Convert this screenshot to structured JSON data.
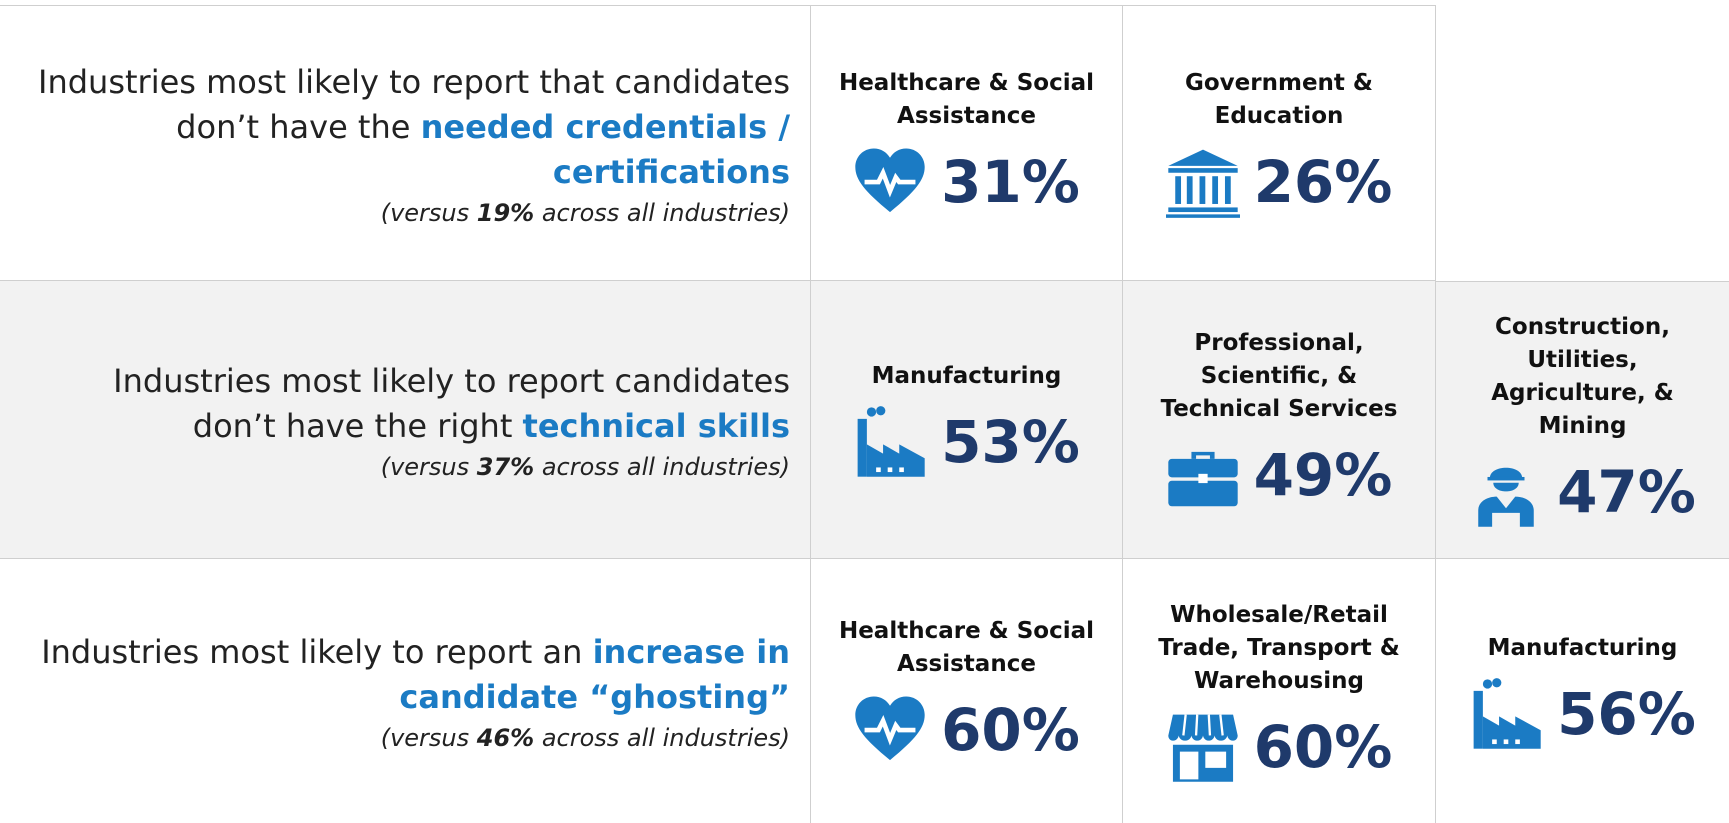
{
  "rows": [
    {
      "description": {
        "text": "Industries most likely to report that candidates don’t have the ",
        "highlight": "needed credentials / certifications"
      },
      "note": {
        "before": "(versus ",
        "value": "19%",
        "after": " across all industries)"
      },
      "cells": [
        {
          "label": "Healthcare & Social Assistance",
          "value": "31%"
        },
        {
          "label": "Government & Education",
          "value": "26%"
        }
      ]
    },
    {
      "description": {
        "text": "Industries most likely to report candidates don’t have the right ",
        "highlight": "technical skills"
      },
      "note": {
        "before": "(versus ",
        "value": "37%",
        "after": " across all industries)"
      },
      "cells": [
        {
          "label": "Manufacturing",
          "value": "53%"
        },
        {
          "label": "Professional, Scientific, & Technical Services",
          "value": "49%"
        },
        {
          "label": "Construction, Utilities, Agriculture, & Mining",
          "value": "47%"
        }
      ]
    },
    {
      "description": {
        "text": "Industries most likely to report an ",
        "highlight": "increase in candidate “ghosting”"
      },
      "note": {
        "before": "(versus ",
        "value": "46%",
        "after": " across all industries)"
      },
      "cells": [
        {
          "label": "Healthcare & Social Assistance",
          "value": "60%"
        },
        {
          "label": "Wholesale/Retail Trade, Transport & Warehousing",
          "value": "60%"
        },
        {
          "label": "Manufacturing",
          "value": "56%"
        }
      ]
    }
  ]
}
